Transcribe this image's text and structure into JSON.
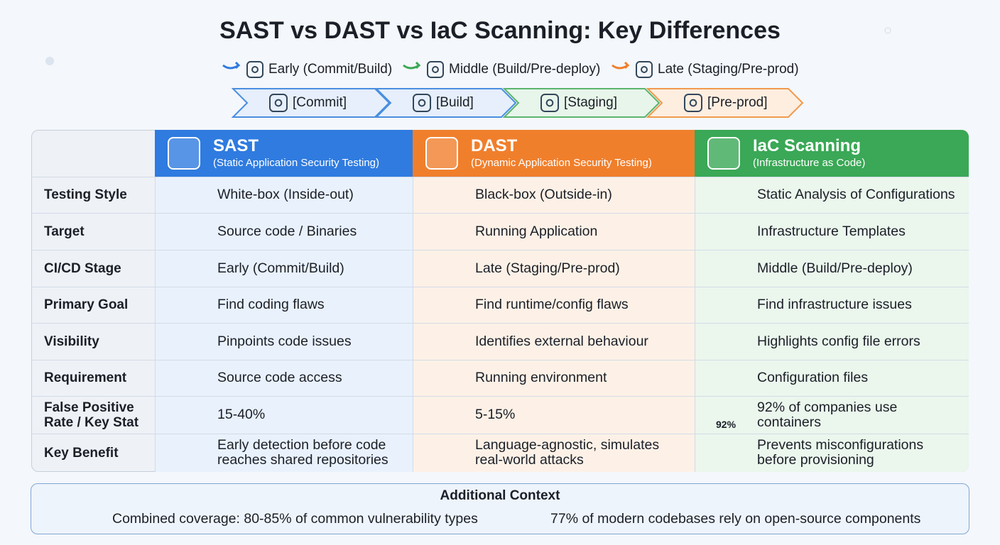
{
  "title": "SAST vs DAST vs IaC Scanning: Key Differences",
  "legend": [
    "Early (Commit/Build)",
    "Middle (Build/Pre-deploy)",
    "Late (Staging/Pre-prod)"
  ],
  "pipeline": [
    "[Commit]",
    "[Build]",
    "[Staging]",
    "[Pre-prod]"
  ],
  "table": {
    "columns": [
      {
        "name": "SAST",
        "subtitle": "(Static Application Security Testing)"
      },
      {
        "name": "DAST",
        "subtitle": "(Dynamic Application Security Testing)"
      },
      {
        "name": "IaC Scanning",
        "subtitle": "(Infrastructure as Code)"
      }
    ],
    "rows": [
      [
        "Testing Style",
        "White-box (Inside-out)",
        "Black-box (Outside-in)",
        "Static Analysis of Configurations"
      ],
      [
        "Target",
        "Source code / Binaries",
        "Running Application",
        "Infrastructure Templates"
      ],
      [
        "CI/CD Stage",
        "Early (Commit/Build)",
        "Late (Staging/Pre-prod)",
        "Middle (Build/Pre-deploy)"
      ],
      [
        "Primary Goal",
        "Find coding flaws",
        "Find runtime/config flaws",
        "Find infrastructure issues"
      ],
      [
        "Visibility",
        "Pinpoints code issues",
        "Identifies external behaviour",
        "Highlights config file errors"
      ],
      [
        "Requirement",
        "Source code access",
        "Running environment",
        "Configuration files"
      ],
      [
        "False Positive Rate / Key Stat",
        "15-40%",
        "5-15%",
        "92% of companies use containers"
      ],
      [
        "Key Benefit",
        "Early detection before code reaches shared repositories",
        "Language-agnostic, simulates real-world attacks",
        "Prevents misconfigurations before provisioning"
      ]
    ],
    "iac_stat_badge": "92%"
  },
  "footer": {
    "title": "Additional Context",
    "items": [
      "Combined coverage: 80-85% of common vulnerability types",
      "77% of modern codebases rely on open-source components"
    ]
  }
}
